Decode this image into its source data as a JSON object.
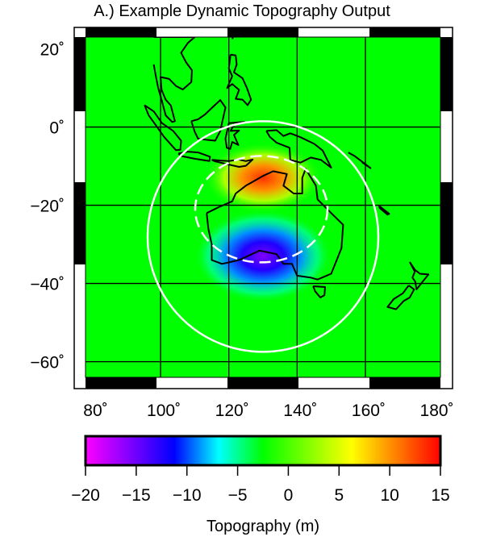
{
  "title": "A.) Example Dynamic Topography Output",
  "map": {
    "lon_range": [
      78,
      182
    ],
    "lat_range": [
      -64,
      23
    ],
    "lon_ticks": [
      "80˚",
      "100˚",
      "120˚",
      "140˚",
      "160˚",
      "180˚"
    ],
    "lat_ticks": [
      "20˚",
      "0˚",
      "−20˚",
      "−40˚",
      "−60˚"
    ],
    "background_color": "#00ff00",
    "coastline_color": "#000000",
    "grid_color": "#000000",
    "overlay_color": "#ffffff",
    "uplift_center": [
      130,
      -13
    ],
    "subsidence_center": [
      130,
      -33
    ],
    "outer_circle": {
      "center": [
        130,
        -28
      ],
      "radius_deg": 31
    },
    "dashed_ring": {
      "center": [
        130,
        -21
      ],
      "radius_deg": 15
    }
  },
  "colorbar": {
    "ticks": [
      "−20",
      "−15",
      "−10",
      "−5",
      "0",
      "5",
      "10",
      "15"
    ],
    "range": [
      -20,
      15
    ],
    "label": "Topography (m)",
    "colors": [
      "#ff00ff",
      "#8000ff",
      "#0000ff",
      "#00ffff",
      "#00ff00",
      "#80ff00",
      "#ffff00",
      "#ff8000",
      "#ff0000"
    ]
  }
}
